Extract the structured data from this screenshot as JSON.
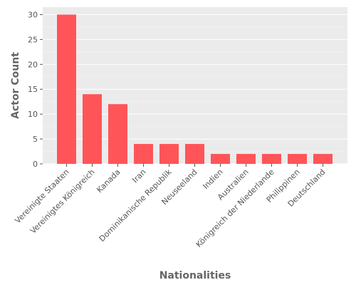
{
  "chart_data": {
    "type": "bar",
    "title": "",
    "xlabel": "Nationalities",
    "ylabel": "Actor Count",
    "categories": [
      "Vereinigte Staaten",
      "Vereinigtes Königreich",
      "Kanada",
      "Iran",
      "Dominikanische Republik",
      "Neuseeland",
      "Indien",
      "Australien",
      "Königreich der Niederlande",
      "Philippinen",
      "Deutschland"
    ],
    "values": [
      30,
      14,
      12,
      4,
      4,
      4,
      2,
      2,
      2,
      2,
      2
    ],
    "ylim": [
      0,
      31.5
    ],
    "yticks": [
      0,
      5,
      10,
      15,
      20,
      25,
      30
    ],
    "grid": true,
    "legend": "none",
    "bar_color": "#ff5558",
    "background_color": "#ebebeb",
    "grid_color": "#ffffff"
  }
}
